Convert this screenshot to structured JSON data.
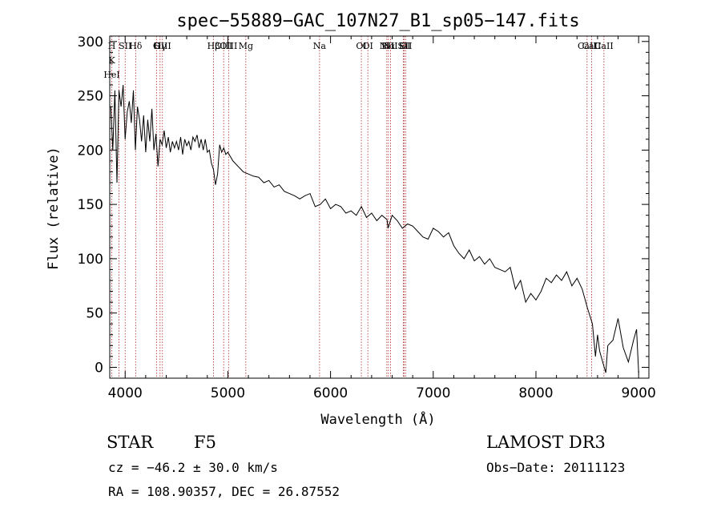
{
  "chart_data": {
    "type": "line",
    "title": "spec−55889−GAC_107N27_B1_sp05−147.fits",
    "xlabel": "Wavelength (Å)",
    "ylabel": "Flux (relative)",
    "xlim": [
      3850,
      9100
    ],
    "ylim": [
      -10,
      305
    ],
    "xticks": [
      4000,
      5000,
      6000,
      7000,
      8000,
      9000
    ],
    "yticks": [
      0,
      50,
      100,
      150,
      200,
      250,
      300
    ],
    "grid": false,
    "legend": "none",
    "line_color": "#000000",
    "marker_color": "#b22222",
    "series": [
      {
        "values_x": [
          3860,
          3880,
          3900,
          3920,
          3940,
          3960,
          3980,
          4000,
          4020,
          4040,
          4060,
          4080,
          4100,
          4120,
          4140,
          4160,
          4180,
          4200,
          4220,
          4240,
          4260,
          4280,
          4300,
          4320,
          4340,
          4360,
          4380,
          4400,
          4420,
          4440,
          4460,
          4480,
          4500,
          4520,
          4540,
          4560,
          4580,
          4600,
          4620,
          4640,
          4660,
          4680,
          4700,
          4720,
          4740,
          4760,
          4780,
          4800,
          4820,
          4840,
          4860,
          4880,
          4900,
          4920,
          4940,
          4960,
          4980,
          5000,
          5050,
          5100,
          5150,
          5200,
          5250,
          5300,
          5350,
          5400,
          5450,
          5500,
          5550,
          5600,
          5650,
          5700,
          5750,
          5800,
          5850,
          5900,
          5950,
          6000,
          6050,
          6100,
          6150,
          6200,
          6250,
          6300,
          6350,
          6400,
          6450,
          6500,
          6550,
          6560,
          6600,
          6650,
          6700,
          6750,
          6800,
          6850,
          6900,
          6950,
          7000,
          7050,
          7100,
          7150,
          7200,
          7250,
          7300,
          7350,
          7400,
          7450,
          7500,
          7550,
          7600,
          7650,
          7700,
          7750,
          7800,
          7850,
          7900,
          7950,
          8000,
          8050,
          8100,
          8150,
          8200,
          8250,
          8300,
          8350,
          8400,
          8450,
          8480,
          8500,
          8550,
          8580,
          8600,
          8620,
          8650,
          8680,
          8700,
          8750,
          8800,
          8850,
          8900,
          8950,
          8980,
          9000
        ],
        "values_y": [
          240,
          200,
          255,
          170,
          255,
          240,
          260,
          210,
          235,
          245,
          225,
          255,
          200,
          240,
          228,
          208,
          232,
          198,
          228,
          208,
          238,
          200,
          215,
          185,
          210,
          205,
          218,
          202,
          212,
          198,
          208,
          202,
          208,
          200,
          212,
          196,
          210,
          204,
          208,
          200,
          212,
          208,
          214,
          202,
          210,
          200,
          210,
          198,
          200,
          188,
          182,
          168,
          178,
          205,
          198,
          202,
          196,
          198,
          190,
          185,
          180,
          178,
          176,
          175,
          170,
          172,
          166,
          168,
          162,
          160,
          158,
          155,
          158,
          160,
          148,
          150,
          155,
          146,
          150,
          148,
          142,
          144,
          140,
          148,
          138,
          142,
          135,
          140,
          136,
          128,
          140,
          135,
          128,
          132,
          130,
          125,
          120,
          118,
          128,
          125,
          120,
          124,
          112,
          105,
          100,
          108,
          98,
          102,
          95,
          100,
          92,
          90,
          88,
          92,
          72,
          80,
          60,
          68,
          62,
          70,
          82,
          78,
          85,
          80,
          88,
          75,
          82,
          72,
          62,
          55,
          40,
          10,
          30,
          15,
          5,
          -5,
          20,
          25,
          45,
          18,
          5,
          25,
          35,
          -5
        ]
      }
    ],
    "line_markers": [
      {
        "x": 3870,
        "labels": [
          "H",
          "K",
          "HeI"
        ]
      },
      {
        "x": 3940,
        "labels": []
      },
      {
        "x": 4000,
        "labels": [
          "SII"
        ]
      },
      {
        "x": 4102,
        "labels": [
          "Hδ"
        ]
      },
      {
        "x": 4305,
        "labels": [
          "G"
        ]
      },
      {
        "x": 4340,
        "labels": [
          "Hγ"
        ]
      },
      {
        "x": 4363,
        "labels": [
          "OIII"
        ]
      },
      {
        "x": 4861,
        "labels": [
          "Hβ"
        ]
      },
      {
        "x": 4959,
        "labels": [
          "OIII"
        ]
      },
      {
        "x": 5007,
        "labels": [
          "OIII"
        ]
      },
      {
        "x": 5175,
        "labels": [
          "Mg"
        ]
      },
      {
        "x": 5893,
        "labels": [
          "Na"
        ]
      },
      {
        "x": 6300,
        "labels": [
          "OI"
        ]
      },
      {
        "x": 6363,
        "labels": [
          "OI"
        ]
      },
      {
        "x": 6548,
        "labels": [
          "NII"
        ]
      },
      {
        "x": 6563,
        "labels": [
          "Hα"
        ]
      },
      {
        "x": 6584,
        "labels": [
          "NII"
        ]
      },
      {
        "x": 6708,
        "labels": [
          "Li"
        ]
      },
      {
        "x": 6717,
        "labels": [
          "SII"
        ]
      },
      {
        "x": 6731,
        "labels": [
          "SII"
        ]
      },
      {
        "x": 8498,
        "labels": [
          "CaII"
        ]
      },
      {
        "x": 8542,
        "labels": [
          "CaII"
        ]
      },
      {
        "x": 8662,
        "labels": [
          "CaII"
        ]
      }
    ]
  },
  "info": {
    "class": "STAR",
    "subclass": "F5",
    "survey": "LAMOST DR3",
    "cz": "cz = −46.2 ± 30.0 km/s",
    "obs_date": "Obs−Date: 20111123",
    "radec": "RA = 108.90357, DEC =  26.87552"
  }
}
